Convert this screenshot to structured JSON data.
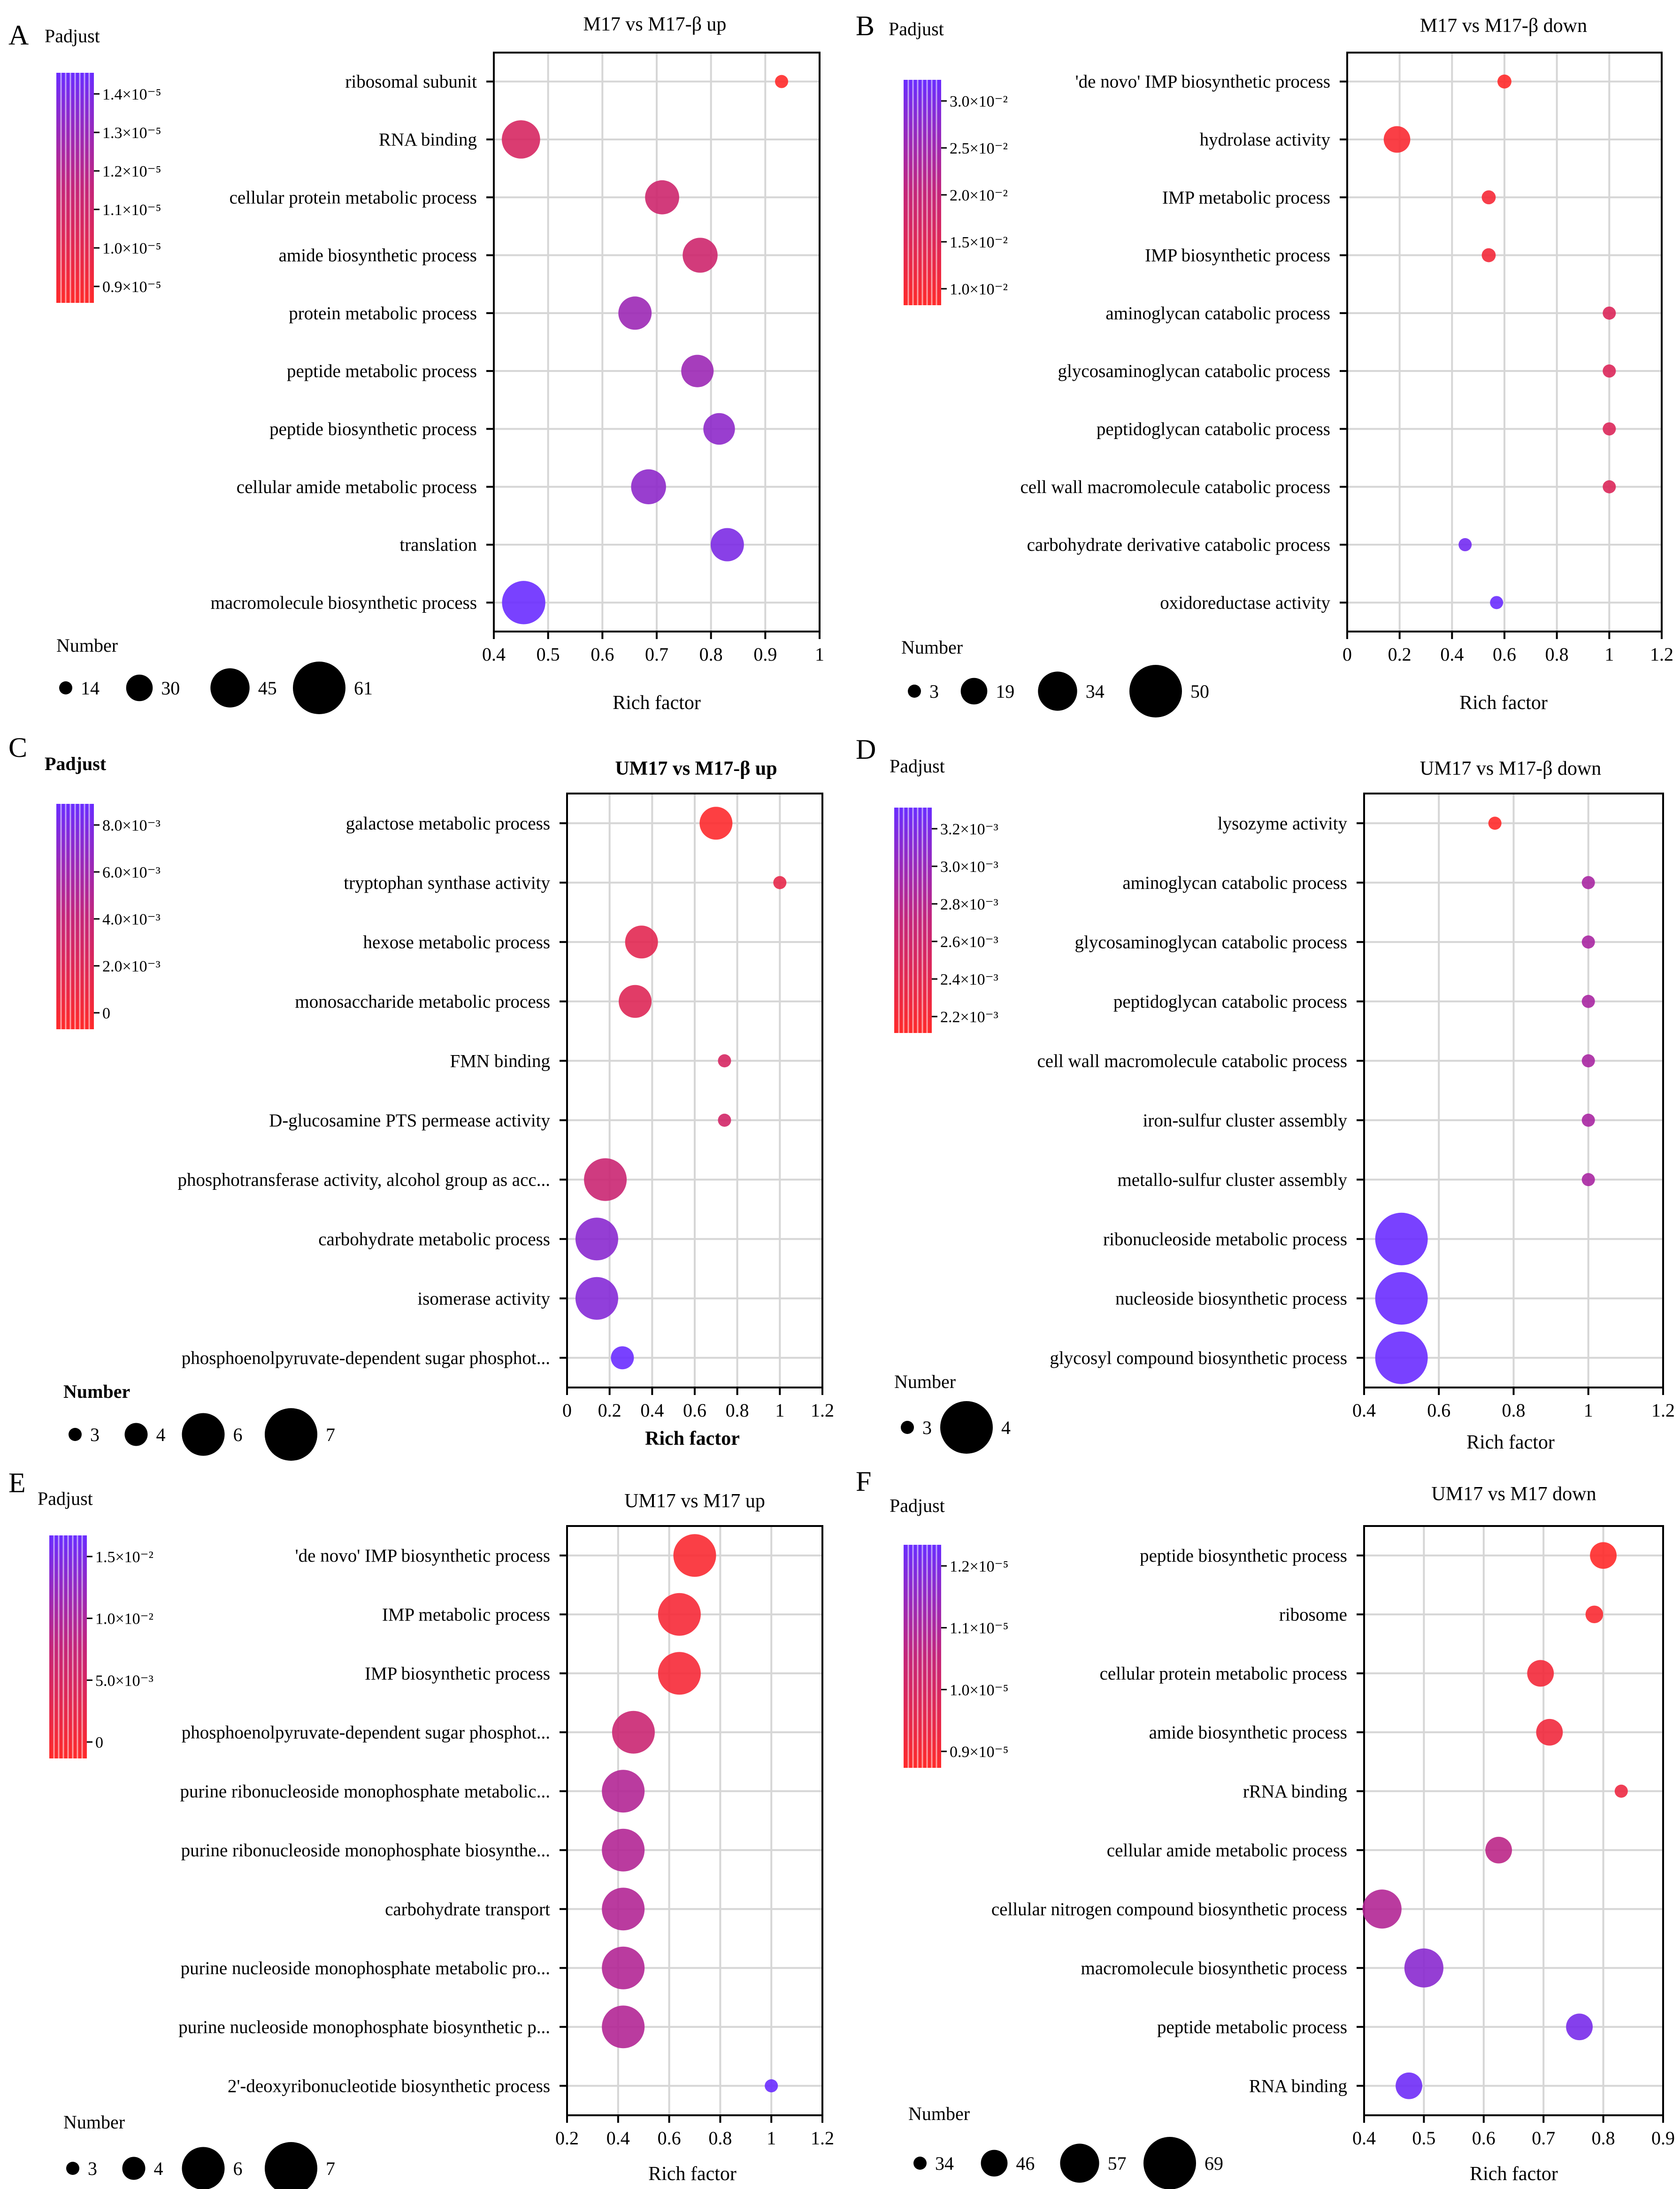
{
  "figure": {
    "panel_labels": [
      "A",
      "B",
      "C",
      "D",
      "E",
      "F"
    ],
    "colors": {
      "low": "#ff2a2a",
      "high": "#6a2cff",
      "grid": "#d6d6d6",
      "axis": "#000000"
    }
  },
  "chart_data": [
    {
      "type": "scatter",
      "panel": "A",
      "title": "M17 vs M17-β up",
      "title_bold": false,
      "xlabel": "Rich factor",
      "xlim": [
        0.4,
        1.0
      ],
      "xticks": [
        0.4,
        0.5,
        0.6,
        0.7,
        0.8,
        0.9,
        1.0
      ],
      "xtick_labels": [
        "0.4",
        "0.5",
        "0.6",
        "0.7",
        "0.8",
        "0.9",
        "1"
      ],
      "categories": [
        "ribosomal subunit",
        "RNA binding",
        "cellular protein metabolic process",
        "amide biosynthetic process",
        "protein metabolic process",
        "peptide metabolic process",
        "peptide biosynthetic process",
        "cellular amide metabolic process",
        "translation",
        "macromolecule biosynthetic process"
      ],
      "rich_factor": [
        0.93,
        0.45,
        0.71,
        0.78,
        0.66,
        0.775,
        0.815,
        0.685,
        0.83,
        0.455
      ],
      "number": [
        14,
        44,
        39,
        40,
        38,
        37,
        36,
        40,
        38,
        50
      ],
      "padjust_scale": [
        0.0,
        0.35,
        0.42,
        0.42,
        0.72,
        0.72,
        0.8,
        0.8,
        0.9,
        1.0
      ],
      "colorbar": {
        "label": "Padjust",
        "ticks": [
          "1.4×10⁻⁵",
          "1.3×10⁻⁵",
          "1.2×10⁻⁵",
          "1.1×10⁻⁵",
          "1.0×10⁻⁵",
          "0.9×10⁻⁵"
        ]
      },
      "size_legend": {
        "label": "Number",
        "values": [
          14,
          30,
          45,
          61
        ],
        "labels": [
          "14",
          "30",
          "45",
          "61"
        ]
      }
    },
    {
      "type": "scatter",
      "panel": "B",
      "title": "M17 vs M17-β down",
      "title_bold": false,
      "xlabel": "Rich factor",
      "xlim": [
        0.0,
        1.2
      ],
      "xticks": [
        0,
        0.2,
        0.4,
        0.6,
        0.8,
        1.0,
        1.2
      ],
      "xtick_labels": [
        "0",
        "0.2",
        "0.4",
        "0.6",
        "0.8",
        "1",
        "1.2"
      ],
      "categories": [
        "'de novo' IMP biosynthetic process",
        "hydrolase activity",
        "IMP metabolic process",
        "IMP biosynthetic process",
        "aminoglycan catabolic process",
        "glycosaminoglycan catabolic process",
        "peptidoglycan catabolic process",
        "cell wall macromolecule catabolic process",
        "carbohydrate derivative catabolic process",
        "oxidoreductase activity"
      ],
      "rich_factor": [
        0.6,
        0.19,
        0.54,
        0.54,
        1.0,
        1.0,
        1.0,
        1.0,
        0.45,
        0.57
      ],
      "number": [
        4,
        19,
        4,
        4,
        3,
        3,
        3,
        3,
        3,
        3
      ],
      "padjust_scale": [
        0.0,
        0.05,
        0.08,
        0.1,
        0.3,
        0.3,
        0.3,
        0.3,
        0.95,
        1.0
      ],
      "colorbar": {
        "label": "Padjust",
        "ticks": [
          "3.0×10⁻²",
          "2.5×10⁻²",
          "2.0×10⁻²",
          "1.5×10⁻²",
          "1.0×10⁻²"
        ]
      },
      "size_legend": {
        "label": "Number",
        "values": [
          3,
          19,
          34,
          50
        ],
        "labels": [
          "3",
          "19",
          "34",
          "50"
        ]
      }
    },
    {
      "type": "scatter",
      "panel": "C",
      "title": "UM17 vs M17-β up",
      "title_bold": true,
      "xlabel": "Rich factor",
      "xlim": [
        0.0,
        1.2
      ],
      "xticks": [
        0,
        0.2,
        0.4,
        0.6,
        0.8,
        1.0,
        1.2
      ],
      "xtick_labels": [
        "0",
        "0.2",
        "0.4",
        "0.6",
        "0.8",
        "1",
        "1.2"
      ],
      "categories": [
        "galactose metabolic process",
        "tryptophan synthase activity",
        "hexose metabolic process",
        "monosaccharide metabolic process",
        "FMN binding",
        "D-glucosamine PTS permease activity",
        "phosphotransferase activity, alcohol group as acc...",
        "carbohydrate metabolic process",
        "isomerase activity",
        "phosphoenolpyruvate-dependent sugar phosphot..."
      ],
      "rich_factor": [
        0.7,
        1.0,
        0.35,
        0.32,
        0.74,
        0.74,
        0.18,
        0.14,
        0.14,
        0.26
      ],
      "number": [
        5,
        3,
        5,
        5,
        3,
        3,
        6,
        6,
        6,
        4
      ],
      "padjust_scale": [
        0.02,
        0.2,
        0.25,
        0.28,
        0.35,
        0.38,
        0.45,
        0.82,
        0.85,
        1.0
      ],
      "colorbar": {
        "label": "Padjust",
        "ticks": [
          "8.0×10⁻³",
          "6.0×10⁻³",
          "4.0×10⁻³",
          "2.0×10⁻³",
          "0"
        ]
      },
      "size_legend": {
        "label": "Number",
        "values": [
          3,
          4,
          6,
          7
        ],
        "labels": [
          "3",
          "4",
          "6",
          "7"
        ]
      }
    },
    {
      "type": "scatter",
      "panel": "D",
      "title": "UM17 vs M17-β down",
      "title_bold": false,
      "xlabel": "Rich factor",
      "xlim": [
        0.4,
        1.2
      ],
      "xticks": [
        0.4,
        0.6,
        0.8,
        1.0,
        1.2
      ],
      "xtick_labels": [
        "0.4",
        "0.6",
        "0.8",
        "1",
        "1.2"
      ],
      "categories": [
        "lysozyme activity",
        "aminoglycan catabolic process",
        "glycosaminoglycan catabolic process",
        "peptidoglycan catabolic process",
        "cell wall macromolecule catabolic process",
        "iron-sulfur cluster assembly",
        "metallo-sulfur cluster assembly",
        "ribonucleoside metabolic process",
        "nucleoside biosynthetic process",
        "glycosyl compound biosynthetic process"
      ],
      "rich_factor": [
        0.75,
        1.0,
        1.0,
        1.0,
        1.0,
        1.0,
        1.0,
        0.5,
        0.5,
        0.5
      ],
      "number": [
        3,
        3,
        3,
        3,
        3,
        3,
        3,
        4,
        4,
        4
      ],
      "padjust_scale": [
        0.0,
        0.65,
        0.65,
        0.65,
        0.65,
        0.65,
        0.65,
        1.0,
        1.0,
        1.0
      ],
      "colorbar": {
        "label": "Padjust",
        "ticks": [
          "3.2×10⁻³",
          "3.0×10⁻³",
          "2.8×10⁻³",
          "2.6×10⁻³",
          "2.4×10⁻³",
          "2.2×10⁻³"
        ]
      },
      "size_legend": {
        "label": "Number",
        "values": [
          3,
          4
        ],
        "labels": [
          "3",
          "4"
        ]
      }
    },
    {
      "type": "scatter",
      "panel": "E",
      "title": "UM17 vs M17 up",
      "title_bold": false,
      "xlabel": "Rich factor",
      "xlim": [
        0.2,
        1.2
      ],
      "xticks": [
        0.2,
        0.4,
        0.6,
        0.8,
        1.0,
        1.2
      ],
      "xtick_labels": [
        "0.2",
        "0.4",
        "0.6",
        "0.8",
        "1",
        "1.2"
      ],
      "categories": [
        "'de novo' IMP biosynthetic process",
        "IMP metabolic process",
        "IMP biosynthetic process",
        "phosphoenolpyruvate-dependent sugar phosphot...",
        "purine ribonucleoside monophosphate metabolic...",
        "purine ribonucleoside monophosphate biosynthe...",
        "carbohydrate transport",
        "purine nucleoside monophosphate metabolic pro...",
        "purine nucleoside monophosphate biosynthetic p...",
        "2'-deoxyribonucleotide biosynthetic process"
      ],
      "rich_factor": [
        0.7,
        0.64,
        0.64,
        0.46,
        0.42,
        0.42,
        0.42,
        0.42,
        0.42,
        1.0
      ],
      "number": [
        6,
        6,
        6,
        6,
        6,
        6,
        6,
        6,
        6,
        3
      ],
      "padjust_scale": [
        0.05,
        0.08,
        0.08,
        0.45,
        0.6,
        0.6,
        0.6,
        0.6,
        0.6,
        1.0
      ],
      "colorbar": {
        "label": "Padjust",
        "ticks": [
          "1.5×10⁻²",
          "1.0×10⁻²",
          "5.0×10⁻³",
          "0"
        ]
      },
      "size_legend": {
        "label": "Number",
        "values": [
          3,
          4,
          6,
          7
        ],
        "labels": [
          "3",
          "4",
          "6",
          "7"
        ]
      }
    },
    {
      "type": "scatter",
      "panel": "F",
      "title": "UM17 vs M17 down",
      "title_bold": false,
      "xlabel": "Rich factor",
      "xlim": [
        0.4,
        0.9
      ],
      "xticks": [
        0.4,
        0.5,
        0.6,
        0.7,
        0.8,
        0.9
      ],
      "xtick_labels": [
        "0.4",
        "0.5",
        "0.6",
        "0.7",
        "0.8",
        "0.9"
      ],
      "categories": [
        "peptide biosynthetic process",
        "ribosome",
        "cellular protein metabolic process",
        "amide biosynthetic process",
        "rRNA binding",
        "cellular amide metabolic process",
        "cellular nitrogen compound biosynthetic process",
        "macromolecule biosynthetic process",
        "peptide metabolic process",
        "RNA binding"
      ],
      "rich_factor": [
        0.8,
        0.785,
        0.695,
        0.71,
        0.83,
        0.625,
        0.43,
        0.5,
        0.76,
        0.475
      ],
      "number": [
        46,
        38,
        46,
        46,
        34,
        46,
        57,
        57,
        46,
        46
      ],
      "padjust_scale": [
        0.0,
        0.05,
        0.1,
        0.12,
        0.15,
        0.55,
        0.6,
        0.82,
        0.92,
        0.97
      ],
      "colorbar": {
        "label": "Padjust",
        "ticks": [
          "1.2×10⁻⁵",
          "1.1×10⁻⁵",
          "1.0×10⁻⁵",
          "0.9×10⁻⁵"
        ]
      },
      "size_legend": {
        "label": "Number",
        "values": [
          34,
          46,
          57,
          69
        ],
        "labels": [
          "34",
          "46",
          "57",
          "69"
        ]
      }
    }
  ]
}
